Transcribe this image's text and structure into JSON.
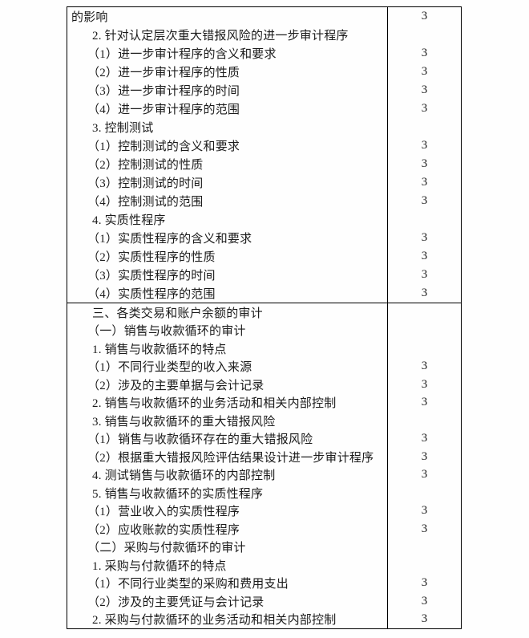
{
  "page": {
    "background_color": "#fefefe",
    "text_color": "#1b1b1b",
    "border_color": "#000000"
  },
  "table": {
    "value_column_symbol": "3",
    "blocks": [
      {
        "rows": [
          {
            "text": "的影响",
            "level": "flush",
            "value": "3"
          },
          {
            "text": "2. 针对认定层次重大错报风险的进一步审计程序",
            "level": "num",
            "value": ""
          },
          {
            "text": "（1）进一步审计程序的含义和要求",
            "level": "paren",
            "value": "3"
          },
          {
            "text": "（2）进一步审计程序的性质",
            "level": "paren",
            "value": "3"
          },
          {
            "text": "（3）进一步审计程序的时间",
            "level": "paren",
            "value": "3"
          },
          {
            "text": "（4）进一步审计程序的范围",
            "level": "paren",
            "value": "3"
          },
          {
            "text": "3. 控制测试",
            "level": "num",
            "value": ""
          },
          {
            "text": "（1）控制测试的含义和要求",
            "level": "paren",
            "value": "3"
          },
          {
            "text": "（2）控制测试的性质",
            "level": "paren",
            "value": "3"
          },
          {
            "text": "（3）控制测试的时间",
            "level": "paren",
            "value": "3"
          },
          {
            "text": "（4）控制测试的范围",
            "level": "paren",
            "value": "3"
          },
          {
            "text": "4. 实质性程序",
            "level": "num",
            "value": ""
          },
          {
            "text": "（1）实质性程序的含义和要求",
            "level": "paren",
            "value": "3"
          },
          {
            "text": "（2）实质性程序的性质",
            "level": "paren",
            "value": "3"
          },
          {
            "text": "（3）实质性程序的时间",
            "level": "paren",
            "value": "3"
          },
          {
            "text": "（4）实质性程序的范围",
            "level": "paren",
            "value": "3"
          }
        ]
      },
      {
        "rows": [
          {
            "text": "三、各类交易和账户余额的审计",
            "level": "num",
            "value": ""
          },
          {
            "text": "（一）销售与收款循环的审计",
            "level": "paren",
            "value": ""
          },
          {
            "text": "1. 销售与收款循环的特点",
            "level": "num",
            "value": ""
          },
          {
            "text": "（1）不同行业类型的收入来源",
            "level": "paren",
            "value": "3"
          },
          {
            "text": "（2）涉及的主要单据与会计记录",
            "level": "paren",
            "value": "3"
          },
          {
            "text": "2. 销售与收款循环的业务活动和相关内部控制",
            "level": "num",
            "value": "3"
          },
          {
            "text": "3. 销售与收款循环的重大错报风险",
            "level": "num",
            "value": ""
          },
          {
            "text": "（1）销售与收款循环存在的重大错报风险",
            "level": "paren",
            "value": "3"
          },
          {
            "text": "（2）根据重大错报风险评估结果设计进一步审计程序",
            "level": "paren",
            "value": "3"
          },
          {
            "text": "4. 测试销售与收款循环的内部控制",
            "level": "num",
            "value": "3"
          },
          {
            "text": "5. 销售与收款循环的实质性程序",
            "level": "num",
            "value": ""
          },
          {
            "text": "（1）营业收入的实质性程序",
            "level": "paren",
            "value": "3"
          },
          {
            "text": "（2）应收账款的实质性程序",
            "level": "paren",
            "value": "3"
          },
          {
            "text": "（二）采购与付款循环的审计",
            "level": "paren",
            "value": ""
          },
          {
            "text": "1. 采购与付款循环的特点",
            "level": "num",
            "value": ""
          },
          {
            "text": "（1）不同行业类型的采购和费用支出",
            "level": "paren",
            "value": "3"
          },
          {
            "text": "（2）涉及的主要凭证与会计记录",
            "level": "paren",
            "value": "3"
          },
          {
            "text": "2. 采购与付款循环的业务活动和相关内部控制",
            "level": "num",
            "value": "3"
          }
        ]
      }
    ]
  }
}
